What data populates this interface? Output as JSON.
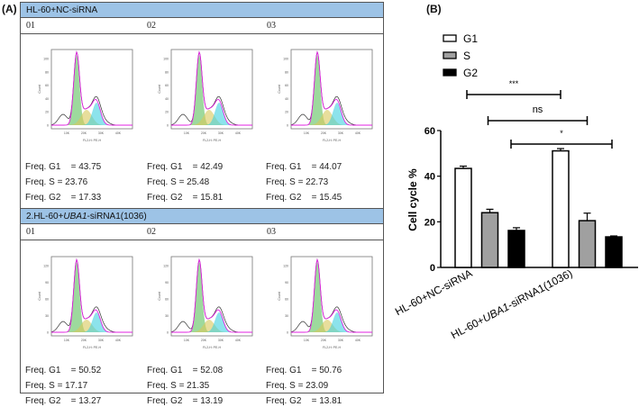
{
  "panel_a": {
    "label": "(A)",
    "groups": [
      {
        "title_parts": [
          "HL-60+NC-siRNA",
          "",
          ""
        ],
        "replicates": [
          {
            "id": "01",
            "g1": "Freq. G1    = 43.75",
            "s": "Freq. S = 23.76",
            "g2": "Freq. G2    = 17.33"
          },
          {
            "id": "02",
            "g1": "Freq. G1    = 42.49",
            "s": "Freq. S = 25.48",
            "g2": "Freq. G2    = 15.81"
          },
          {
            "id": "03",
            "g1": "Freq. G1    = 44.07",
            "s": "Freq. S = 22.73",
            "g2": "Freq. G2    = 15.45"
          }
        ],
        "y_ticks": [
          "0",
          "20",
          "40",
          "60",
          "80",
          "100"
        ]
      },
      {
        "title_parts": [
          "2.HL-60+",
          "UBA1",
          "-siRNA1(1036)"
        ],
        "replicates": [
          {
            "id": "01",
            "g1": "Freq. G1    = 50.52",
            "s": "Freq. S = 17.17",
            "g2": "Freq. G2    = 13.27"
          },
          {
            "id": "02",
            "g1": "Freq. G1    = 52.08",
            "s": "Freq. S = 21.35",
            "g2": "Freq. G2    = 13.19"
          },
          {
            "id": "03",
            "g1": "Freq. G1    = 50.76",
            "s": "Freq. S = 23.09",
            "g2": "Freq. G2    = 13.81"
          }
        ],
        "y_ticks": [
          "0",
          "30",
          "60",
          "90",
          "120"
        ]
      }
    ],
    "histogram": {
      "ylabel": "Count",
      "xlabel": "FL2-H: PE-H",
      "x_ticks": [
        "10K",
        "20K",
        "30K",
        "40K"
      ]
    }
  },
  "chart_data": {
    "label": "(B)",
    "type": "bar",
    "categories": [
      "HL-60+NC-siRNA",
      "HL-60+UBA1-siRNA1(1036)"
    ],
    "category_parts": [
      [
        "HL-60+NC-siRNA",
        "",
        ""
      ],
      [
        "HL-60+",
        "UBA1",
        "-siRNA1(1036)"
      ]
    ],
    "series": [
      {
        "name": "G1",
        "values": [
          43.4,
          51.1
        ],
        "errors": [
          1.0,
          1.0
        ],
        "color": "#ffffff"
      },
      {
        "name": "S",
        "values": [
          24.0,
          20.5
        ],
        "errors": [
          1.5,
          3.3
        ],
        "color": "#a0a0a0"
      },
      {
        "name": "G2",
        "values": [
          16.2,
          13.4
        ],
        "errors": [
          1.2,
          0.4
        ],
        "color": "#000000"
      }
    ],
    "ylabel": "Cell cycle %",
    "ylim": [
      0,
      60
    ],
    "y_ticks": [
      "0",
      "20",
      "40",
      "60"
    ],
    "legend": "top-left",
    "grid": false,
    "significance": [
      {
        "label": "***",
        "from": "G1 HL-60+NC-siRNA",
        "to": "G1 HL-60+UBA1-siRNA1(1036)"
      },
      {
        "label": "ns",
        "from": "S HL-60+NC-siRNA",
        "to": "S HL-60+UBA1-siRNA1(1036)"
      },
      {
        "label": "*",
        "from": "G2 HL-60+NC-siRNA",
        "to": "G2 HL-60+UBA1-siRNA1(1036)"
      }
    ]
  }
}
